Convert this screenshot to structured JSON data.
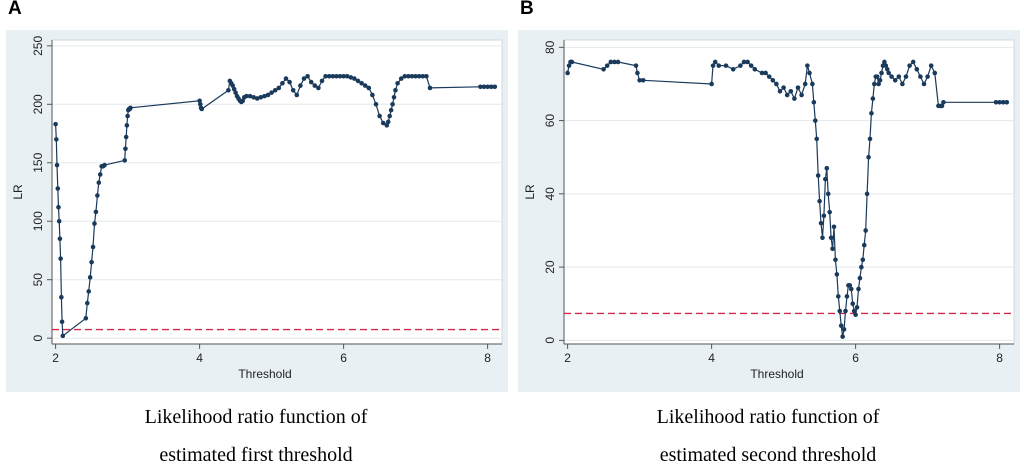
{
  "panels": [
    {
      "letter": "A",
      "caption_line1": "Likelihood ratio function of",
      "caption_line2": "estimated first threshold",
      "chart_data": {
        "type": "line",
        "title": "",
        "xlabel": "Threshold",
        "ylabel": "LR",
        "xlim": [
          1.95,
          8.2
        ],
        "ylim": [
          -5,
          255
        ],
        "xticks": [
          2,
          4,
          6,
          8
        ],
        "yticks": [
          0,
          50,
          100,
          150,
          200,
          250
        ],
        "critical_value": 7.35,
        "colors": {
          "series": "#1a3a5c",
          "critical": "#d0294d",
          "plot_bg": "#ffffff",
          "frame_bg": "#e9f0f3",
          "grid": "#e3e9ec"
        },
        "series": [
          {
            "name": "LR",
            "x": [
              2.0,
              2.01,
              2.02,
              2.03,
              2.04,
              2.05,
              2.06,
              2.07,
              2.08,
              2.09,
              2.1,
              2.42,
              2.44,
              2.46,
              2.48,
              2.5,
              2.52,
              2.54,
              2.56,
              2.58,
              2.6,
              2.62,
              2.64,
              2.66,
              2.68,
              2.96,
              2.97,
              2.98,
              2.99,
              3.0,
              3.01,
              3.02,
              3.03,
              3.04,
              4.0,
              4.01,
              4.02,
              4.03,
              4.4,
              4.42,
              4.44,
              4.46,
              4.48,
              4.5,
              4.52,
              4.54,
              4.56,
              4.58,
              4.6,
              4.62,
              4.65,
              4.7,
              4.75,
              4.8,
              4.85,
              4.9,
              4.95,
              5.0,
              5.05,
              5.1,
              5.15,
              5.2,
              5.25,
              5.3,
              5.35,
              5.4,
              5.45,
              5.5,
              5.55,
              5.6,
              5.65,
              5.7,
              5.75,
              5.8,
              5.85,
              5.9,
              5.95,
              6.0,
              6.05,
              6.1,
              6.15,
              6.2,
              6.25,
              6.3,
              6.35,
              6.4,
              6.45,
              6.5,
              6.55,
              6.6,
              6.62,
              6.64,
              6.66,
              6.68,
              6.7,
              6.72,
              6.75,
              6.8,
              6.85,
              6.9,
              6.95,
              7.0,
              7.05,
              7.1,
              7.15,
              7.2,
              7.9,
              7.95,
              8.0,
              8.05,
              8.1
            ],
            "y": [
              183,
              170,
              148,
              128,
              112,
              100,
              85,
              68,
              35,
              14,
              2,
              17,
              30,
              40,
              52,
              65,
              78,
              98,
              108,
              122,
              133,
              140,
              147,
              147,
              148,
              152,
              162,
              172,
              182,
              190,
              195,
              196,
              196,
              197,
              203,
              200,
              197,
              196,
              212,
              220,
              218,
              216,
              213,
              210,
              207,
              205,
              203,
              202,
              203,
              206,
              207,
              207,
              206,
              205,
              206,
              207,
              208,
              210,
              212,
              214,
              218,
              222,
              219,
              212,
              208,
              216,
              222,
              224,
              219,
              216,
              214,
              220,
              224,
              224,
              224,
              224,
              224,
              224,
              224,
              223,
              222,
              220,
              218,
              216,
              214,
              208,
              200,
              190,
              184,
              182,
              185,
              190,
              195,
              200,
              206,
              212,
              218,
              222,
              224,
              224,
              224,
              224,
              224,
              224,
              224,
              214,
              215,
              215,
              215,
              215,
              215
            ]
          }
        ]
      }
    },
    {
      "letter": "B",
      "caption_line1": "Likelihood ratio function of",
      "caption_line2": "estimated second threshold",
      "chart_data": {
        "type": "line",
        "title": "",
        "xlabel": "Threshold",
        "ylabel": "LR",
        "xlim": [
          1.95,
          8.2
        ],
        "ylim": [
          -1,
          82
        ],
        "xticks": [
          2,
          4,
          6,
          8
        ],
        "yticks": [
          0,
          20,
          40,
          60,
          80
        ],
        "critical_value": 7.35,
        "colors": {
          "series": "#1a3a5c",
          "critical": "#d0294d",
          "plot_bg": "#ffffff",
          "frame_bg": "#e9f0f3",
          "grid": "#e3e9ec"
        },
        "series": [
          {
            "name": "LR",
            "x": [
              2.0,
              2.02,
              2.04,
              2.06,
              2.5,
              2.55,
              2.6,
              2.65,
              2.7,
              2.95,
              2.97,
              3.0,
              3.05,
              4.0,
              4.02,
              4.05,
              4.1,
              4.2,
              4.3,
              4.4,
              4.45,
              4.5,
              4.55,
              4.6,
              4.7,
              4.75,
              4.8,
              4.85,
              4.9,
              4.95,
              5.0,
              5.05,
              5.1,
              5.15,
              5.2,
              5.25,
              5.3,
              5.33,
              5.36,
              5.4,
              5.42,
              5.44,
              5.46,
              5.48,
              5.5,
              5.52,
              5.54,
              5.56,
              5.58,
              5.6,
              5.62,
              5.64,
              5.66,
              5.68,
              5.7,
              5.72,
              5.74,
              5.76,
              5.78,
              5.8,
              5.82,
              5.84,
              5.86,
              5.88,
              5.9,
              5.92,
              5.94,
              5.96,
              5.98,
              6.0,
              6.02,
              6.04,
              6.06,
              6.08,
              6.1,
              6.12,
              6.14,
              6.16,
              6.18,
              6.2,
              6.22,
              6.24,
              6.26,
              6.28,
              6.3,
              6.32,
              6.34,
              6.36,
              6.38,
              6.4,
              6.42,
              6.44,
              6.46,
              6.5,
              6.55,
              6.6,
              6.65,
              6.7,
              6.75,
              6.8,
              6.85,
              6.9,
              6.95,
              7.0,
              7.05,
              7.1,
              7.15,
              7.18,
              7.2,
              7.22,
              7.95,
              8.0,
              8.05,
              8.1
            ],
            "y": [
              73,
              75,
              76,
              76,
              74,
              75,
              76,
              76,
              76,
              75,
              73,
              71,
              71,
              70,
              75,
              76,
              75,
              75,
              74,
              75,
              76,
              76,
              75,
              74,
              73,
              73,
              72,
              71,
              70,
              68,
              69,
              67,
              68,
              66,
              69,
              67,
              70,
              75,
              73,
              70,
              65,
              60,
              55,
              45,
              38,
              32,
              28,
              34,
              44,
              47,
              40,
              35,
              28,
              25,
              31,
              22,
              18,
              12,
              8,
              4,
              1,
              3,
              8,
              12,
              15,
              15,
              14,
              10,
              8,
              7,
              9,
              14,
              17,
              20,
              22,
              26,
              30,
              40,
              50,
              55,
              62,
              66,
              70,
              72,
              72,
              70,
              71,
              73,
              75,
              76,
              75,
              74,
              73,
              72,
              71,
              72,
              70,
              72,
              75,
              76,
              74,
              72,
              70,
              72,
              75,
              73,
              64,
              64,
              64,
              65,
              65,
              65,
              65,
              65
            ]
          }
        ]
      }
    }
  ]
}
